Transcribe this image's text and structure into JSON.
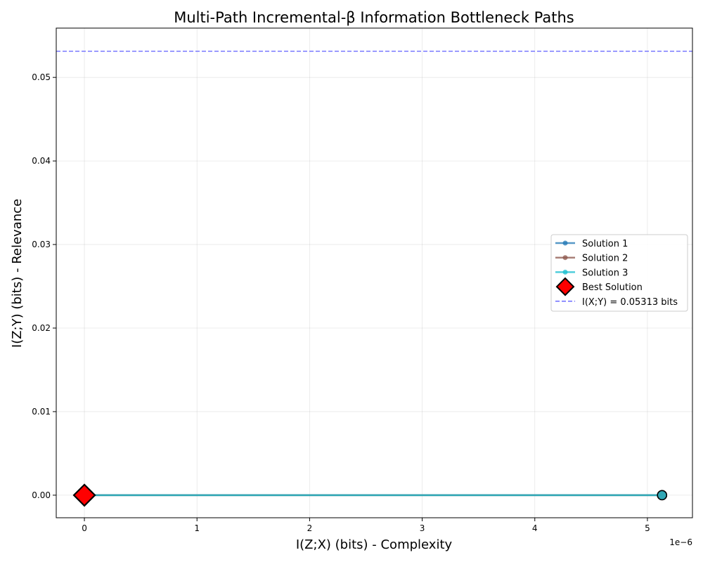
{
  "chart_data": {
    "type": "line",
    "title": "Multi-Path Incremental-β Information Bottleneck Paths",
    "xlabel": "I(Z;X) (bits) - Complexity",
    "ylabel": "I(Z;Y) (bits) - Relevance",
    "x_offset_label": "1e−6",
    "x_scale": 1e-06,
    "xlim": [
      -0.25,
      5.4
    ],
    "ylim": [
      -0.0027,
      0.0559
    ],
    "x_ticks": [
      0,
      1,
      2,
      3,
      4,
      5
    ],
    "x_tick_labels": [
      "0",
      "1",
      "2",
      "3",
      "4",
      "5"
    ],
    "y_ticks": [
      0.0,
      0.01,
      0.02,
      0.03,
      0.04,
      0.05
    ],
    "y_tick_labels": [
      "0.00",
      "0.01",
      "0.02",
      "0.03",
      "0.04",
      "0.05"
    ],
    "grid": true,
    "legend_position": "center-right",
    "series": [
      {
        "name": "Solution 1",
        "color": "#1f77b4",
        "x": [
          5.13,
          0
        ],
        "y": [
          0,
          0
        ]
      },
      {
        "name": "Solution 2",
        "color": "#8c564b",
        "x": [
          5.13,
          0
        ],
        "y": [
          0,
          0
        ]
      },
      {
        "name": "Solution 3",
        "color": "#17becf",
        "x": [
          5.13,
          0
        ],
        "y": [
          0,
          0
        ]
      }
    ],
    "best_solution": {
      "name": "Best Solution",
      "x": 0,
      "y": 0,
      "color": "#ff0000"
    },
    "reference_line": {
      "name": "I(X;Y) = 0.05313 bits",
      "y": 0.05313,
      "color": "#6b6bff"
    }
  }
}
